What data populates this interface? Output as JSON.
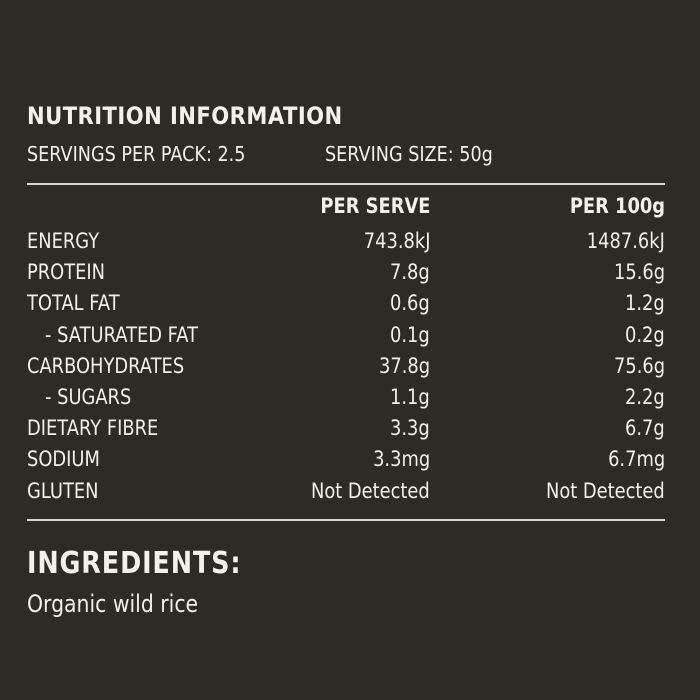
{
  "label": {
    "title": "NUTRITION INFORMATION",
    "servings_per_pack": "SERVINGS PER PACK: 2.5",
    "serving_size": "SERVING SIZE: 50g",
    "columns": {
      "per_serve": "PER SERVE",
      "per_100g": "PER 100g"
    },
    "rows": [
      {
        "name": "ENERGY",
        "per_serve": "743.8kJ",
        "per_100g": "1487.6kJ"
      },
      {
        "name": "PROTEIN",
        "per_serve": "7.8g",
        "per_100g": "15.6g"
      },
      {
        "name": "TOTAL FAT",
        "per_serve": "0.6g",
        "per_100g": "1.2g"
      },
      {
        "name": "- SATURATED FAT",
        "per_serve": "0.1g",
        "per_100g": "0.2g"
      },
      {
        "name": "CARBOHYDRATES",
        "per_serve": "37.8g",
        "per_100g": "75.6g"
      },
      {
        "name": "- SUGARS",
        "per_serve": "1.1g",
        "per_100g": "2.2g"
      },
      {
        "name": "DIETARY FIBRE",
        "per_serve": "3.3g",
        "per_100g": "6.7g"
      },
      {
        "name": "SODIUM",
        "per_serve": "3.3mg",
        "per_100g": "6.7mg"
      },
      {
        "name": "GLUTEN",
        "per_serve": "Not Detected",
        "per_100g": "Not Detected"
      }
    ]
  },
  "ingredients": {
    "heading": "INGREDIENTS:",
    "text": "Organic wild rice"
  },
  "colors": {
    "background": "#2e2b24",
    "text": "#f3f1ec",
    "rule": "#d9d6cf"
  }
}
